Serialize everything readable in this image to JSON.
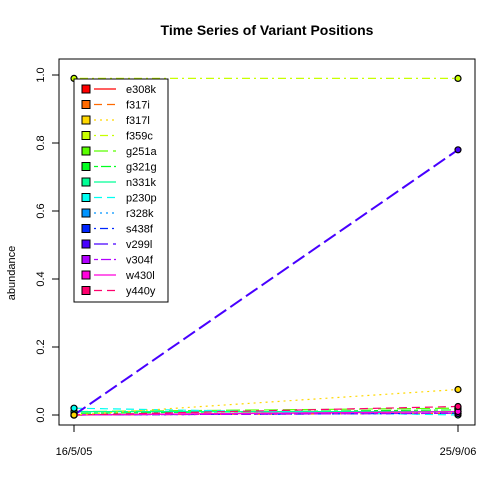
{
  "chart_data": {
    "type": "line",
    "title": "Time Series of Variant Positions",
    "xlabel": "",
    "ylabel": "abundance",
    "x": [
      "16/5/05",
      "25/9/06"
    ],
    "ylim": [
      0,
      1
    ],
    "yticks": [
      "0.0",
      "0.2",
      "0.4",
      "0.6",
      "0.8",
      "1.0"
    ],
    "legend_position": "top-left",
    "series": [
      {
        "name": "e308k",
        "values": [
          0.0,
          0.01
        ],
        "color": "#FF0000",
        "dash": "solid"
      },
      {
        "name": "f317i",
        "values": [
          0.0,
          0.005
        ],
        "color": "#FF6A00",
        "dash": "dashed"
      },
      {
        "name": "f317l",
        "values": [
          0.0,
          0.01
        ],
        "color": "#FFD800",
        "dash": "dotted"
      },
      {
        "name": "f359c",
        "values": [
          0.99,
          0.99
        ],
        "color": "#C8FF00",
        "dash": "dotdash"
      },
      {
        "name": "g251a",
        "values": [
          0.01,
          0.02
        ],
        "color": "#5AFF00",
        "dash": "longdash"
      },
      {
        "name": "g321g",
        "values": [
          0.005,
          0.015
        ],
        "color": "#00FF20",
        "dash": "twodash"
      },
      {
        "name": "n331k",
        "values": [
          0.01,
          0.01
        ],
        "color": "#00FF96",
        "dash": "solid"
      },
      {
        "name": "p230p",
        "values": [
          0.02,
          0.0
        ],
        "color": "#00FFF2",
        "dash": "dashed"
      },
      {
        "name": "r328k",
        "values": [
          0.0,
          0.005
        ],
        "color": "#0094FF",
        "dash": "dotted"
      },
      {
        "name": "s438f",
        "values": [
          0.0,
          0.005
        ],
        "color": "#0026FF",
        "dash": "dotdash"
      },
      {
        "name": "v299l",
        "values": [
          0.0,
          0.78
        ],
        "color": "#4800FF",
        "dash": "longdash"
      },
      {
        "name": "v304f",
        "values": [
          0.0,
          0.005
        ],
        "color": "#B200FF",
        "dash": "twodash"
      },
      {
        "name": "w430l",
        "values": [
          0.0,
          0.01
        ],
        "color": "#FF00DC",
        "dash": "solid"
      },
      {
        "name": "y440y",
        "values": [
          0.0,
          0.025
        ],
        "color": "#FF006E",
        "dash": "dashed"
      },
      {
        "name": "",
        "values": [
          0.0,
          0.075
        ],
        "color": "#FFD800",
        "dash": "dotted"
      }
    ]
  }
}
